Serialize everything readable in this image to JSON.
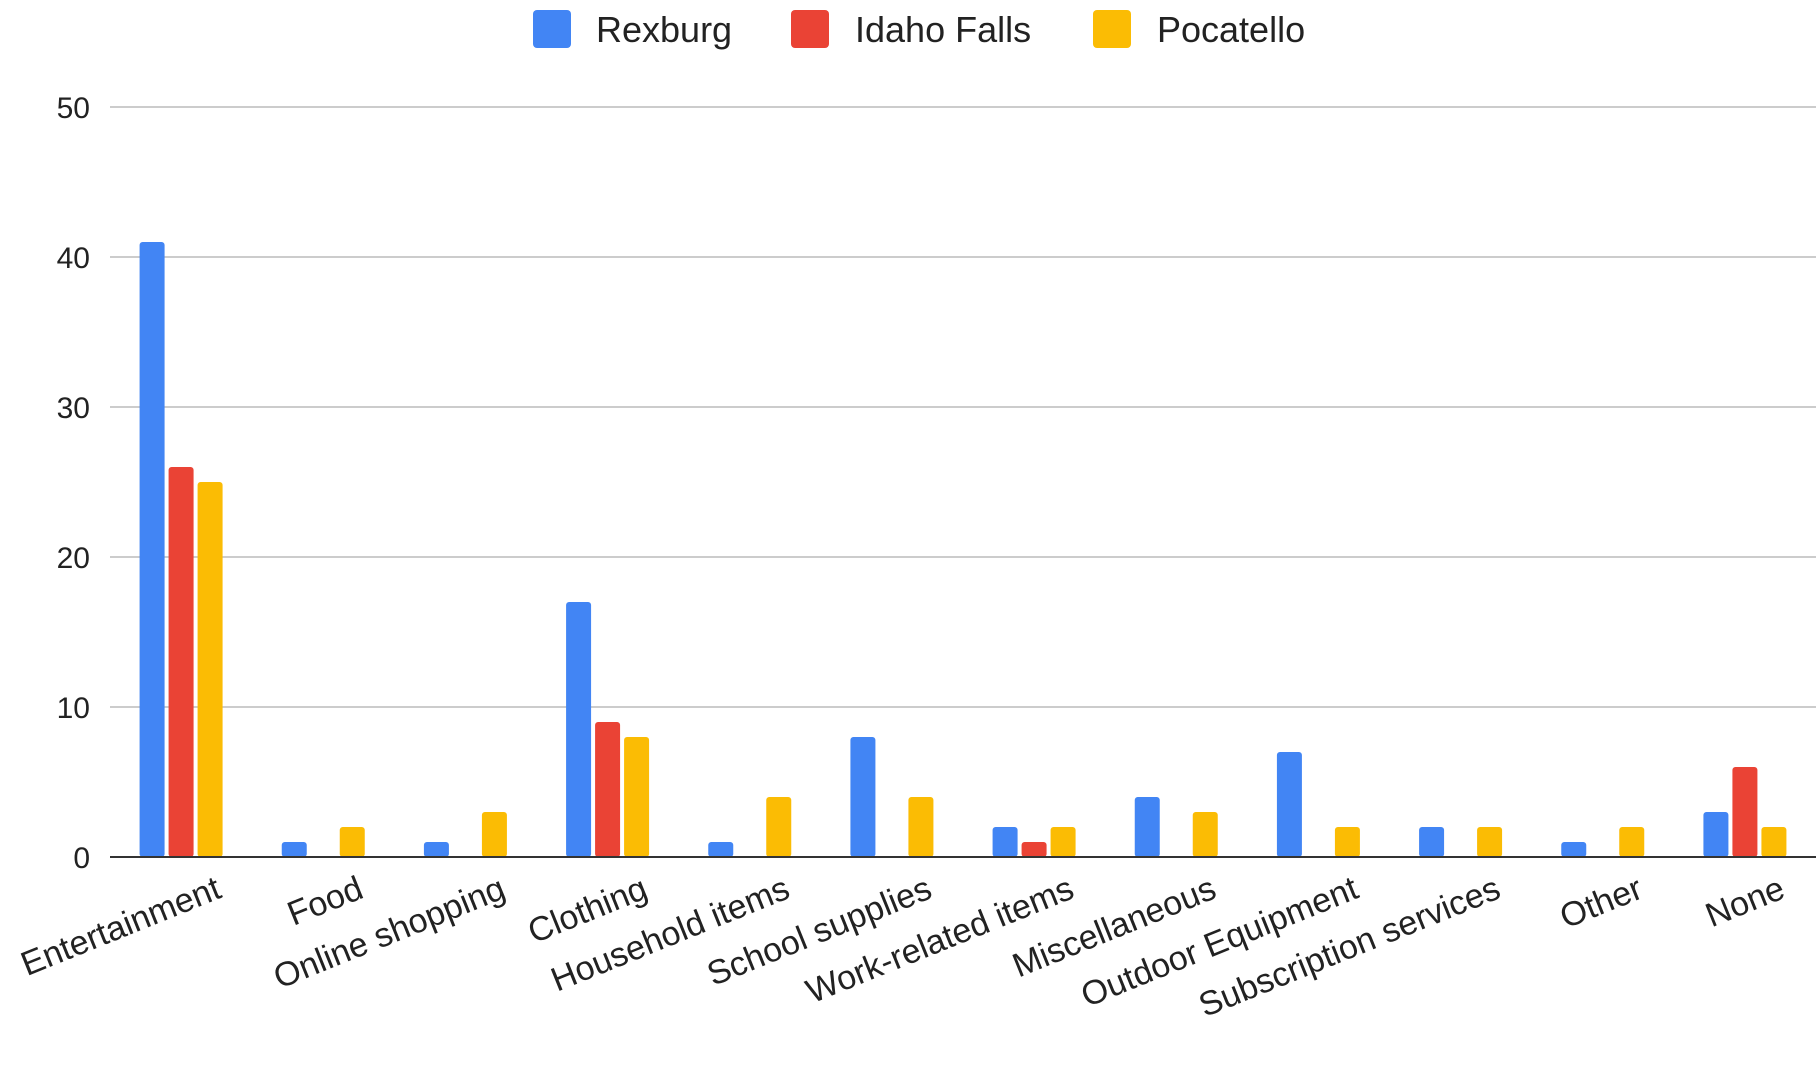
{
  "colors": {
    "background": "#ffffff",
    "grid": "#cccccc",
    "axis": "#333333",
    "text": "#222222"
  },
  "chart_data": {
    "type": "bar",
    "title": "",
    "xlabel": "",
    "ylabel": "",
    "ylim": [
      0,
      50
    ],
    "yticks": [
      0,
      10,
      20,
      30,
      40,
      50
    ],
    "grid": true,
    "legend_position": "top",
    "categories": [
      "Entertainment",
      "Food",
      "Online shopping",
      "Clothing",
      "Household items",
      "School supplies",
      "Work-related items",
      "Miscellaneous",
      "Outdoor Equipment",
      "Subscription services",
      "Other",
      "None"
    ],
    "series": [
      {
        "name": "Rexburg",
        "color": "#4285F4",
        "values": [
          41,
          1,
          1,
          17,
          1,
          8,
          2,
          4,
          7,
          2,
          1,
          3
        ]
      },
      {
        "name": "Idaho Falls",
        "color": "#EA4335",
        "values": [
          26,
          0,
          0,
          9,
          0,
          0,
          1,
          0,
          0,
          0,
          0,
          6
        ]
      },
      {
        "name": "Pocatello",
        "color": "#FBBC04",
        "values": [
          25,
          2,
          3,
          8,
          4,
          4,
          2,
          3,
          2,
          2,
          2,
          2
        ]
      }
    ]
  }
}
